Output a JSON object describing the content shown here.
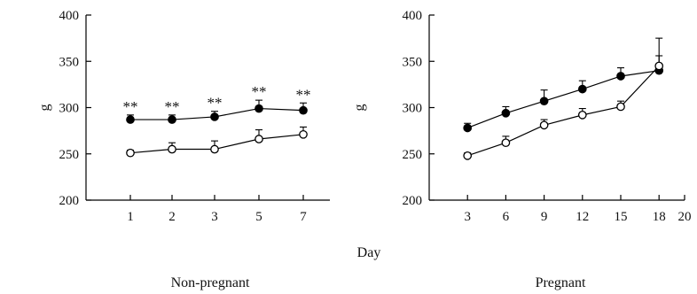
{
  "chart_data": [
    {
      "type": "line",
      "panel_label": "Non-pregnant",
      "ylabel": "g",
      "ylim": [
        200,
        400
      ],
      "yticks": [
        200,
        250,
        300,
        350,
        400
      ],
      "categories": [
        "1",
        "2",
        "3",
        "5",
        "7"
      ],
      "series": [
        {
          "marker": "filled",
          "values": [
            287,
            287,
            290,
            299,
            297
          ],
          "errors": [
            5,
            5,
            6,
            9,
            8
          ]
        },
        {
          "marker": "open",
          "values": [
            251,
            255,
            255,
            266,
            271
          ],
          "errors": [
            3,
            7,
            9,
            10,
            8
          ]
        }
      ],
      "annotations": [
        "**",
        "**",
        "**",
        "**",
        "**"
      ],
      "grid": false
    },
    {
      "type": "line",
      "panel_label": "Pregnant",
      "ylabel": "g",
      "ylim": [
        200,
        400
      ],
      "yticks": [
        200,
        250,
        300,
        350,
        400
      ],
      "xlim": [
        0,
        20
      ],
      "xticks": [
        3,
        6,
        9,
        12,
        15,
        18,
        20
      ],
      "series": [
        {
          "marker": "filled",
          "x": [
            3,
            6,
            9,
            12,
            15,
            18
          ],
          "values": [
            278,
            294,
            307,
            320,
            334,
            340
          ],
          "errors": [
            5,
            7,
            12,
            9,
            9,
            16
          ]
        },
        {
          "marker": "open",
          "x": [
            3,
            6,
            9,
            12,
            15,
            18
          ],
          "values": [
            248,
            262,
            281,
            292,
            301,
            345
          ],
          "errors": [
            3,
            7,
            6,
            7,
            6,
            30
          ]
        }
      ],
      "grid": false
    }
  ],
  "shared_xlabel": "Day"
}
